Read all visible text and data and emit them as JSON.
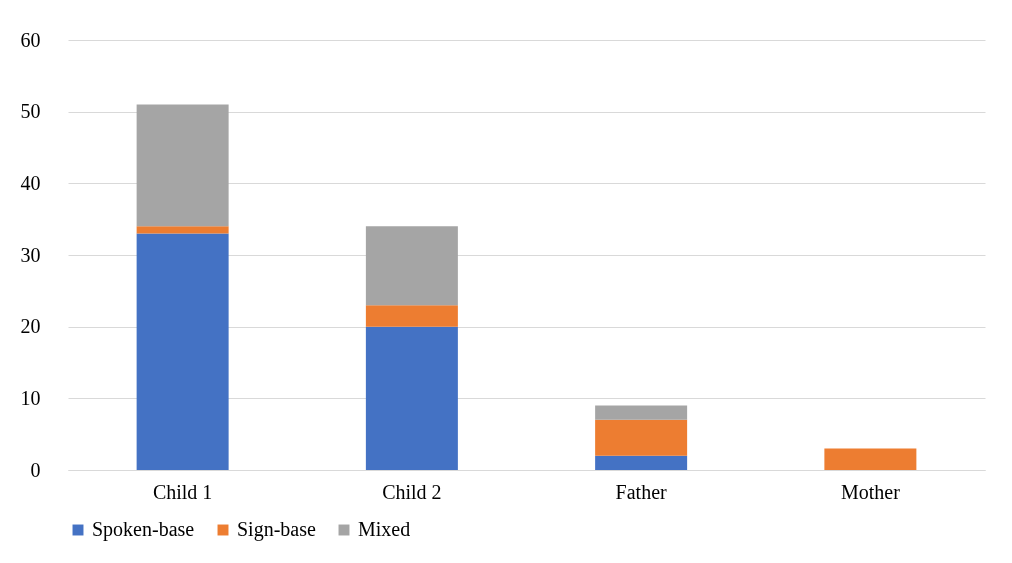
{
  "chart_data": {
    "type": "bar",
    "stacked": true,
    "categories": [
      "Child 1",
      "Child 2",
      "Father",
      "Mother"
    ],
    "series": [
      {
        "name": "Spoken-base",
        "color": "#4472c4",
        "values": [
          33,
          20,
          2,
          0
        ]
      },
      {
        "name": "Sign-base",
        "color": "#ed7d31",
        "values": [
          1,
          3,
          5,
          3
        ]
      },
      {
        "name": "Mixed",
        "color": "#a5a5a5",
        "values": [
          17,
          11,
          2,
          0
        ]
      }
    ],
    "ylim": [
      0,
      60
    ],
    "yticks": [
      0,
      10,
      20,
      30,
      40,
      50,
      60
    ],
    "grid": "y",
    "legend": "bottom"
  }
}
